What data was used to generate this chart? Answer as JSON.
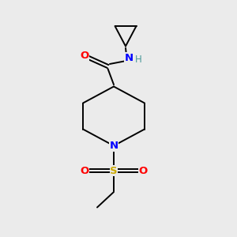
{
  "background_color": "#ebebeb",
  "bond_color": "#000000",
  "atom_colors": {
    "O": "#ff0000",
    "N": "#0000ff",
    "S": "#ccaa00",
    "H": "#4a9999",
    "C": "#000000"
  },
  "figsize": [
    3.0,
    3.0
  ],
  "dpi": 100,
  "xlim": [
    0,
    10
  ],
  "ylim": [
    0,
    10
  ],
  "bond_lw": 1.4,
  "font_size": 9.5
}
